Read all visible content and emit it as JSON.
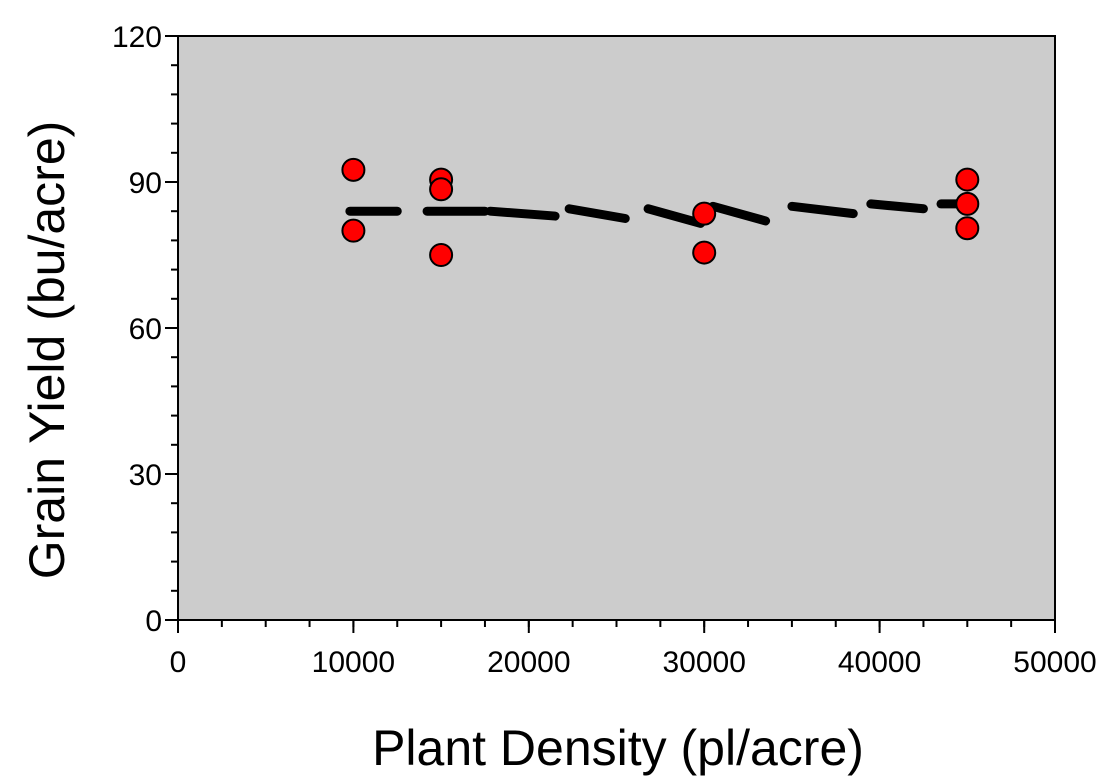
{
  "chart_data": {
    "type": "scatter",
    "title": "",
    "xlabel": "Plant Density (pl/acre)",
    "ylabel": "Grain Yield (bu/acre)",
    "xlim": [
      0,
      50000
    ],
    "ylim": [
      0,
      120
    ],
    "x_major_ticks": [
      0,
      10000,
      20000,
      30000,
      40000,
      50000
    ],
    "x_tick_labels": [
      "0",
      "10000",
      "20000",
      "30000",
      "40000",
      "50000"
    ],
    "y_major_ticks": [
      0,
      30,
      60,
      90,
      120
    ],
    "y_tick_labels": [
      "0",
      "30",
      "60",
      "90",
      "120"
    ],
    "x_minor_step": 2500,
    "y_minor_step": 6,
    "grid": false,
    "plot_background": "#cccccc",
    "series": [
      {
        "kind": "points",
        "color": "#ff0000",
        "points": [
          {
            "x": 10000,
            "y": 92.5
          },
          {
            "x": 10000,
            "y": 80.0
          },
          {
            "x": 15000,
            "y": 90.5
          },
          {
            "x": 15000,
            "y": 88.5
          },
          {
            "x": 15000,
            "y": 75.0
          },
          {
            "x": 30000,
            "y": 83.5
          },
          {
            "x": 30000,
            "y": 75.5
          },
          {
            "x": 45000,
            "y": 90.5
          },
          {
            "x": 45000,
            "y": 85.5
          },
          {
            "x": 45000,
            "y": 80.5
          }
        ]
      },
      {
        "kind": "fit-dashes",
        "color": "#000000",
        "segments": [
          {
            "x1": 9800,
            "x2": 12500,
            "y1": 84.0,
            "y2": 84.0
          },
          {
            "x1": 14200,
            "x2": 17500,
            "y1": 84.0,
            "y2": 84.0
          },
          {
            "x1": 17800,
            "x2": 21500,
            "y1": 84.0,
            "y2": 83.0
          },
          {
            "x1": 22300,
            "x2": 25500,
            "y1": 84.5,
            "y2": 82.5
          },
          {
            "x1": 26800,
            "x2": 29800,
            "y1": 84.5,
            "y2": 81.5
          },
          {
            "x1": 30500,
            "x2": 33500,
            "y1": 85.0,
            "y2": 82.0
          },
          {
            "x1": 35000,
            "x2": 38500,
            "y1": 85.0,
            "y2": 83.5
          },
          {
            "x1": 39500,
            "x2": 42500,
            "y1": 85.5,
            "y2": 84.5
          },
          {
            "x1": 43500,
            "x2": 45300,
            "y1": 85.5,
            "y2": 85.5
          }
        ]
      }
    ]
  }
}
